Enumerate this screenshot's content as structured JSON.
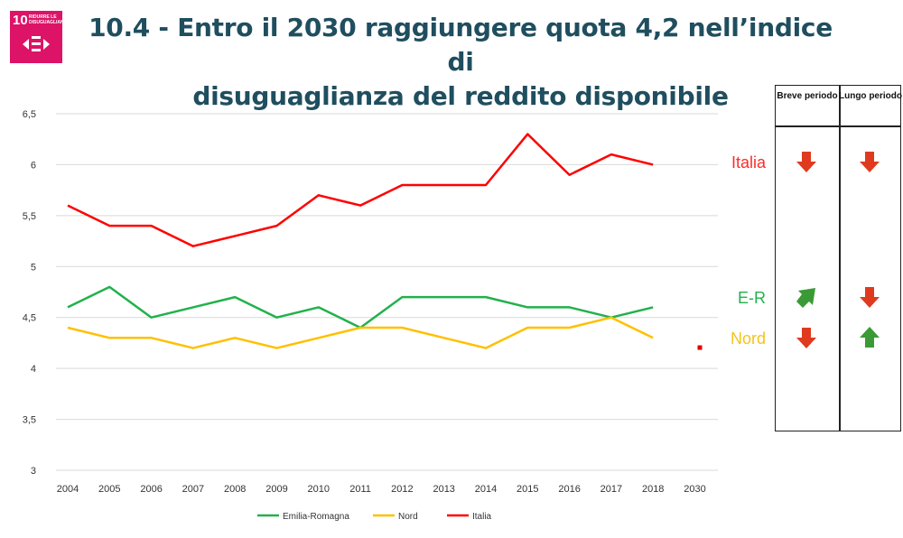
{
  "sdg_badge": {
    "number": "10",
    "label": "RIDURRE LE DISUGUAGLIANZE",
    "color": "#dd1367"
  },
  "title": {
    "line1": "10.4 - Entro il 2030 raggiungere quota 4,2 nell’indice di",
    "line2": "disuguaglianza  del reddito disponibile"
  },
  "trend_table": {
    "headers": [
      "Breve periodo",
      "Lungo periodo"
    ],
    "rows": [
      {
        "label": "Italia",
        "color": "#ff2b2b",
        "short": "down",
        "short_color": "#e03a1e",
        "long": "down",
        "long_color": "#e03a1e"
      },
      {
        "label": "E-R",
        "color": "#22b14c",
        "short": "up-right",
        "short_color": "#3a9a35",
        "long": "down",
        "long_color": "#e03a1e"
      },
      {
        "label": "Nord",
        "color": "#f5c21b",
        "short": "down",
        "short_color": "#e03a1e",
        "long": "up",
        "long_color": "#3a9a35"
      }
    ]
  },
  "chart_data": {
    "type": "line",
    "categories": [
      "2004",
      "2005",
      "2006",
      "2007",
      "2008",
      "2009",
      "2010",
      "2011",
      "2012",
      "2013",
      "2014",
      "2015",
      "2016",
      "2017",
      "2018",
      "2030"
    ],
    "ylim": [
      3,
      6.5
    ],
    "yticks": [
      "3",
      "3,5",
      "4",
      "4,5",
      "5",
      "5,5",
      "6",
      "6,5"
    ],
    "ytick_values": [
      3,
      3.5,
      4,
      4.5,
      5,
      5.5,
      6,
      6.5
    ],
    "grid": true,
    "legend_position": "bottom",
    "series": [
      {
        "name": "Emilia-Romagna",
        "color": "#22b14c",
        "values": [
          4.6,
          4.8,
          4.5,
          4.6,
          4.7,
          4.5,
          4.6,
          4.4,
          4.7,
          4.7,
          4.7,
          4.6,
          4.6,
          4.5,
          4.6,
          null
        ]
      },
      {
        "name": "Nord",
        "color": "#ffc000",
        "values": [
          4.4,
          4.3,
          4.3,
          4.2,
          4.3,
          4.2,
          4.3,
          4.4,
          4.4,
          4.3,
          4.2,
          4.4,
          4.4,
          4.5,
          4.3,
          null
        ]
      },
      {
        "name": "Italia",
        "color": "#ff0000",
        "values": [
          5.6,
          5.4,
          5.4,
          5.2,
          5.3,
          5.4,
          5.7,
          5.6,
          5.8,
          5.8,
          5.8,
          6.3,
          5.9,
          6.1,
          6.0,
          null
        ]
      }
    ],
    "target": {
      "category": "2030",
      "value": 4.2,
      "color": "#e00000"
    }
  }
}
